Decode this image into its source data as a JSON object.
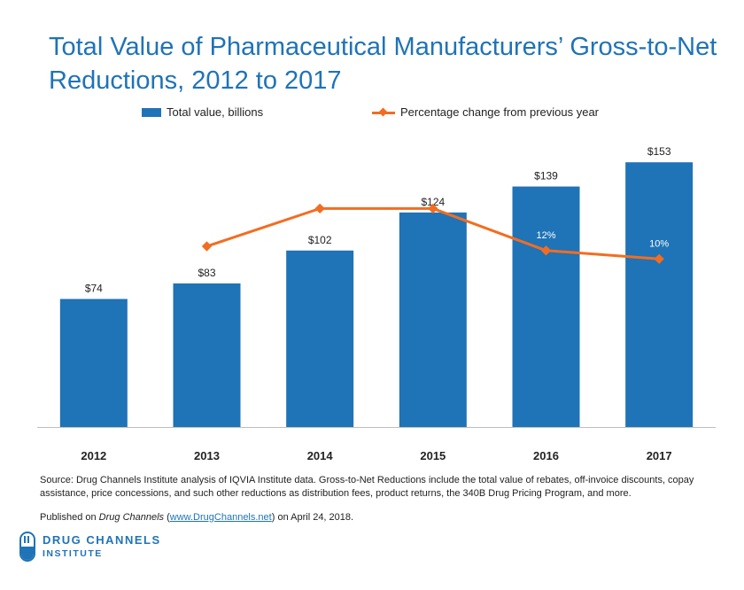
{
  "title": "Total Value of Pharmaceutical Manufacturers’ Gross-to-Net Reductions, 2012 to 2017",
  "colors": {
    "bar": "#1f73b7",
    "line": "#f26d21",
    "title": "#1f73b7",
    "axis": "#bfbfbf"
  },
  "chart_data": {
    "type": "bar",
    "categories": [
      "2012",
      "2013",
      "2014",
      "2015",
      "2016",
      "2017"
    ],
    "series": [
      {
        "name": "Total value, billions",
        "kind": "bar",
        "values": [
          74,
          83,
          102,
          124,
          139,
          153
        ],
        "labels": [
          "$74",
          "$83",
          "$102",
          "$124",
          "$139",
          "$153"
        ]
      },
      {
        "name": "Percentage change from previous year",
        "kind": "line",
        "values": [
          null,
          13,
          22,
          22,
          12,
          10
        ],
        "labels": [
          "",
          "13%",
          "22%",
          "22%",
          "12%",
          "10%"
        ]
      }
    ],
    "ylim": [
      0,
      170
    ],
    "y2lim": [
      -30,
      40
    ],
    "legend": "top",
    "grid": false
  },
  "source_text": "Source: Drug Channels Institute analysis of IQVIA Institute data. Gross-to-Net Reductions include the total value of rebates, off-invoice discounts, copay assistance, price concessions, and such other reductions as distribution fees, product returns, the 340B Drug Pricing Program, and more.",
  "published": {
    "prefix": "Published on ",
    "outlet": "Drug Channels",
    "open": " (",
    "link": "www.DrugChannels.net",
    "suffix": ") on April 24, 2018."
  },
  "logo": {
    "line1": "DRUG CHANNELS",
    "line2": "INSTITUTE",
    "icon": "capsule-icon"
  }
}
